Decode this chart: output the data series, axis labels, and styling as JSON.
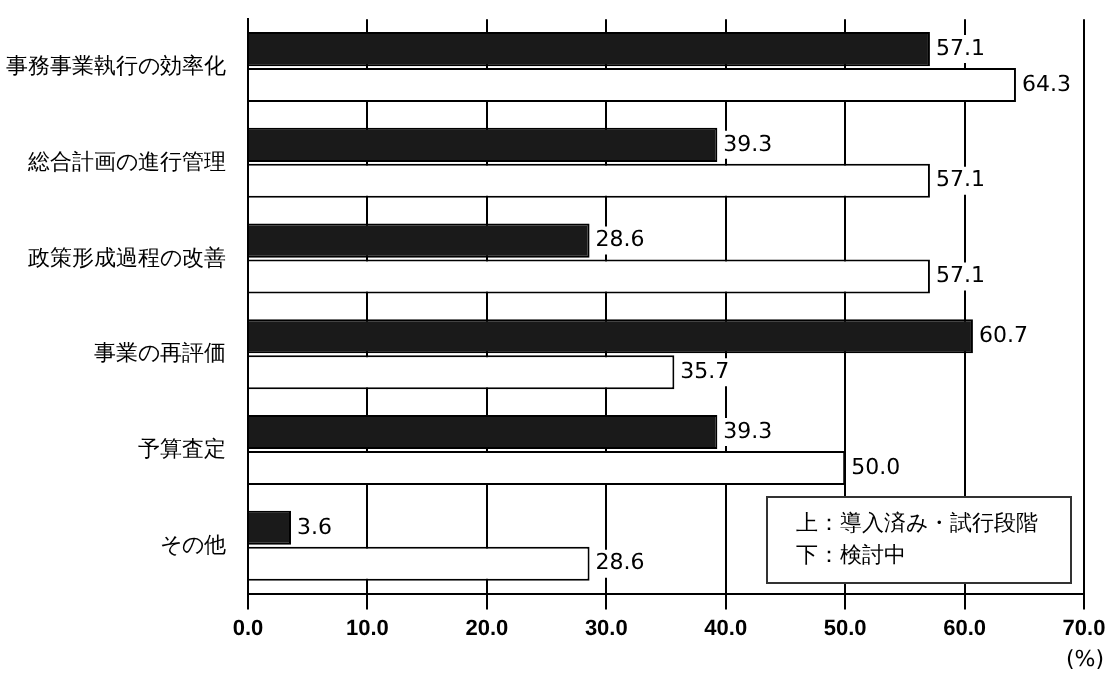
{
  "chart_data": {
    "type": "bar",
    "orientation": "horizontal",
    "categories": [
      "事務事業執行の効率化",
      "総合計画の進行管理",
      "政策形成過程の改善",
      "事業の再評価",
      "予算査定",
      "その他"
    ],
    "series": [
      {
        "name": "上：導入済み・試行段階",
        "color": "#1a1a1a",
        "values": [
          57.1,
          39.3,
          28.6,
          60.7,
          39.3,
          3.6
        ],
        "value_labels": [
          "57.1",
          "39.3",
          "28.6",
          "60.7",
          "39.3",
          "3.6"
        ]
      },
      {
        "name": "下：検討中",
        "color": "#ffffff",
        "values": [
          64.3,
          57.1,
          57.1,
          35.7,
          50.0,
          28.6
        ],
        "value_labels": [
          "64.3",
          "57.1",
          "57.1",
          "35.7",
          "50.0",
          "28.6"
        ]
      }
    ],
    "xlim": [
      0,
      70
    ],
    "xticks": [
      {
        "value": 0,
        "label": "0.0"
      },
      {
        "value": 10,
        "label": "10.0"
      },
      {
        "value": 20,
        "label": "20.0"
      },
      {
        "value": 30,
        "label": "30.0"
      },
      {
        "value": 40,
        "label": "40.0"
      },
      {
        "value": 50,
        "label": "50.0"
      },
      {
        "value": 60,
        "label": "60.0"
      },
      {
        "value": 70,
        "label": "70.0"
      }
    ],
    "xlabel": "(%)",
    "grid": "x",
    "legend": "bottom right"
  }
}
